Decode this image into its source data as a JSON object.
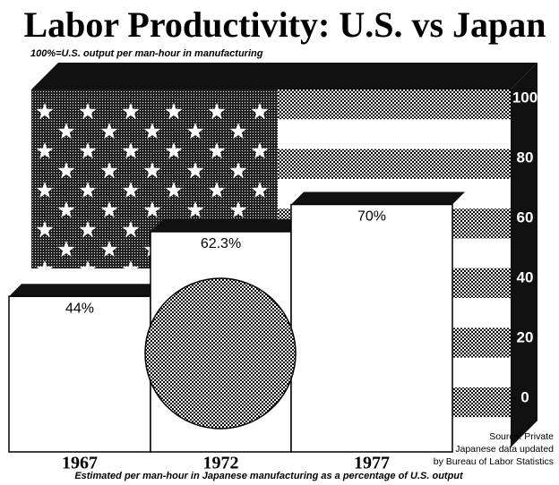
{
  "chart_data": {
    "type": "bar",
    "title": "Labor Productivity: U.S. vs Japan",
    "subtitle": "100%=U.S. output per man-hour in manufacturing",
    "x_label": "Estimated per man-hour in Japanese manufacturing as a percentage of U.S. output",
    "source": [
      "Source: Private",
      "Japanese data updated",
      "by Bureau of Labor Statistics"
    ],
    "categories": [
      "1967",
      "1972",
      "1977"
    ],
    "values": [
      44,
      62.3,
      70
    ],
    "value_labels": [
      "44%",
      "62.3%",
      "70%"
    ],
    "color": "#ffffff",
    "ylim": [
      0,
      100
    ],
    "yticks": [
      0,
      20,
      40,
      60,
      80,
      100
    ]
  }
}
